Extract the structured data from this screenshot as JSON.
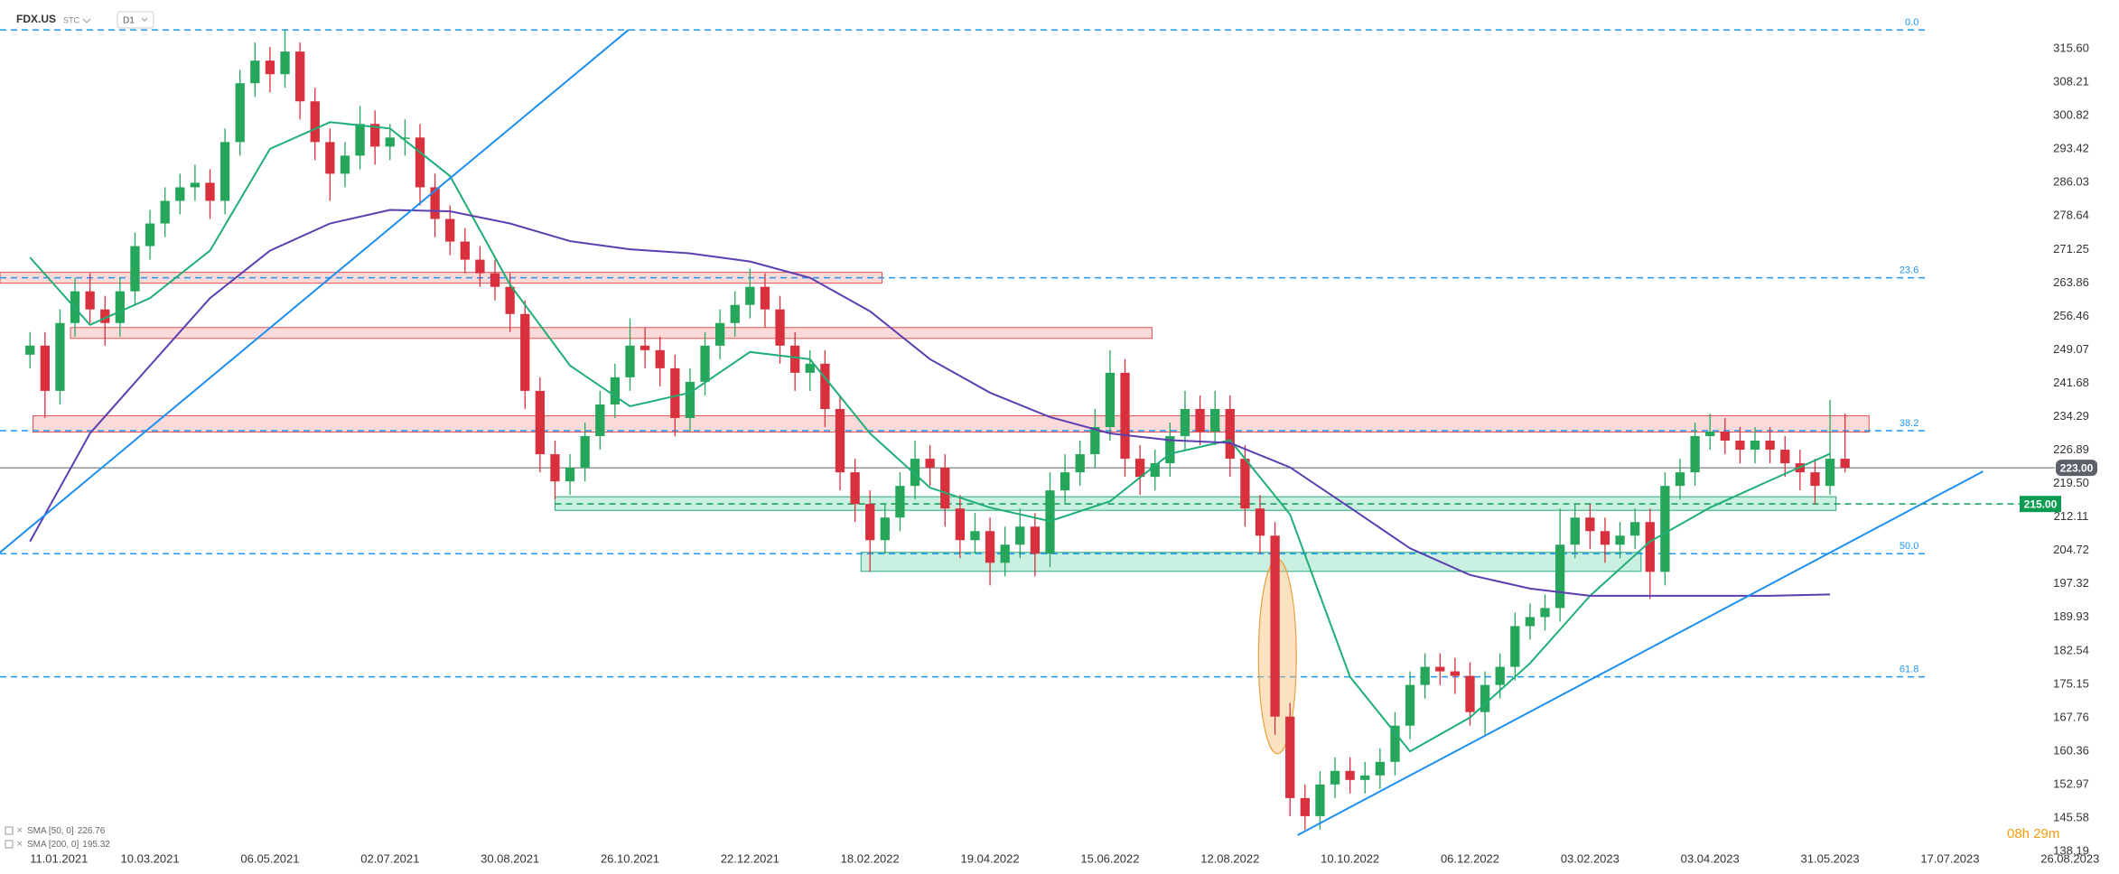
{
  "header": {
    "symbol": "FDX.US",
    "market": "STC",
    "interval": "D1"
  },
  "chart_data": {
    "type": "candlestick",
    "x": [
      0,
      5,
      10,
      15,
      20,
      25,
      30,
      35,
      40,
      45,
      50,
      55,
      60,
      65,
      70,
      75,
      80,
      85,
      90,
      95,
      100,
      105,
      110,
      115,
      120,
      125,
      130,
      135,
      140,
      145,
      150,
      155,
      160,
      165,
      170,
      175,
      180,
      185,
      190,
      195,
      200,
      205,
      210,
      215,
      220,
      225,
      230,
      235,
      240,
      245,
      250,
      255,
      260,
      265,
      270,
      275,
      280,
      285,
      290,
      295,
      300,
      305,
      310,
      315,
      320,
      325,
      330,
      335,
      340,
      345,
      350,
      355,
      360,
      365,
      370,
      375,
      380,
      385,
      390,
      395,
      400,
      405,
      410,
      415,
      420,
      425,
      430,
      435,
      440,
      445,
      450,
      455,
      460,
      465,
      470,
      475,
      480,
      485,
      490,
      495,
      500,
      505,
      510,
      515,
      520,
      525,
      530,
      535,
      540,
      545,
      550,
      555,
      560,
      565,
      570,
      575,
      580,
      585,
      590,
      595,
      600,
      605
    ],
    "open": [
      248,
      250,
      240,
      255,
      262,
      258,
      255,
      262,
      272,
      277,
      282,
      285,
      286,
      282,
      295,
      308,
      313,
      310,
      315,
      304,
      295,
      288,
      292,
      299,
      294,
      296,
      296,
      285,
      278,
      273,
      269,
      266,
      263,
      257,
      240,
      226,
      220,
      223,
      230,
      237,
      243,
      250,
      249,
      245,
      234,
      242,
      250,
      255,
      259,
      263,
      258,
      250,
      244,
      246,
      236,
      222,
      215,
      207,
      212,
      219,
      225,
      223,
      214,
      207,
      209,
      202,
      206,
      210,
      204,
      218,
      222,
      226,
      232,
      244,
      225,
      221,
      224,
      230,
      236,
      231,
      236,
      225,
      214,
      208,
      168,
      150,
      146,
      153,
      156,
      154,
      155,
      158,
      166,
      175,
      179,
      178,
      177,
      169,
      175,
      179,
      188,
      190,
      192,
      206,
      212,
      209,
      206,
      208,
      211,
      200,
      219,
      222,
      230,
      231,
      229,
      227,
      229,
      227,
      224,
      222,
      219,
      225
    ],
    "high": [
      253,
      253,
      258,
      265,
      266,
      261,
      265,
      275,
      280,
      285,
      288,
      290,
      289,
      298,
      311,
      317,
      316,
      320,
      317,
      307,
      298,
      295,
      303,
      302,
      299,
      300,
      299,
      288,
      281,
      276,
      272,
      269,
      266,
      260,
      243,
      229,
      226,
      233,
      240,
      246,
      256,
      254,
      252,
      248,
      245,
      253,
      258,
      262,
      267,
      266,
      261,
      253,
      249,
      249,
      239,
      225,
      218,
      215,
      222,
      229,
      228,
      226,
      217,
      213,
      212,
      210,
      214,
      213,
      222,
      226,
      229,
      236,
      249,
      247,
      228,
      227,
      233,
      240,
      239,
      240,
      239,
      228,
      217,
      211,
      171,
      153,
      156,
      159,
      159,
      158,
      161,
      169,
      178,
      182,
      182,
      181,
      180,
      178,
      182,
      191,
      193,
      195,
      214,
      215,
      215,
      212,
      211,
      214,
      214,
      222,
      225,
      233,
      235,
      234,
      232,
      232,
      232,
      230,
      227,
      225,
      238,
      235
    ],
    "low": [
      245,
      234,
      237,
      252,
      255,
      250,
      252,
      259,
      269,
      274,
      279,
      282,
      278,
      279,
      292,
      305,
      306,
      307,
      300,
      291,
      282,
      285,
      289,
      290,
      291,
      292,
      281,
      274,
      270,
      266,
      263,
      260,
      253,
      236,
      222,
      216,
      217,
      220,
      227,
      234,
      240,
      245,
      241,
      230,
      231,
      239,
      247,
      252,
      256,
      254,
      246,
      240,
      240,
      232,
      218,
      211,
      200,
      204,
      209,
      216,
      219,
      210,
      203,
      204,
      197,
      199,
      203,
      199,
      201,
      215,
      219,
      223,
      229,
      221,
      217,
      218,
      221,
      227,
      228,
      228,
      221,
      210,
      204,
      164,
      146,
      143,
      143,
      150,
      151,
      151,
      152,
      155,
      163,
      172,
      175,
      173,
      166,
      164,
      172,
      176,
      185,
      187,
      189,
      203,
      205,
      202,
      203,
      205,
      194,
      197,
      216,
      219,
      227,
      226,
      224,
      224,
      224,
      221,
      218,
      215,
      217,
      222
    ],
    "close": [
      250,
      240,
      255,
      262,
      258,
      255,
      262,
      272,
      277,
      282,
      285,
      286,
      282,
      295,
      308,
      313,
      310,
      315,
      304,
      295,
      288,
      292,
      299,
      294,
      296,
      296,
      285,
      278,
      273,
      269,
      266,
      263,
      257,
      240,
      226,
      220,
      223,
      230,
      237,
      243,
      250,
      249,
      245,
      234,
      242,
      250,
      255,
      259,
      263,
      258,
      250,
      244,
      246,
      236,
      222,
      215,
      207,
      212,
      219,
      225,
      223,
      214,
      207,
      209,
      202,
      206,
      210,
      204,
      218,
      222,
      226,
      232,
      244,
      225,
      221,
      224,
      230,
      236,
      231,
      236,
      225,
      214,
      208,
      168,
      150,
      146,
      153,
      156,
      154,
      155,
      158,
      166,
      175,
      179,
      178,
      177,
      169,
      175,
      179,
      188,
      190,
      192,
      206,
      212,
      209,
      206,
      208,
      211,
      200,
      219,
      222,
      230,
      231,
      229,
      227,
      229,
      227,
      224,
      222,
      219,
      225,
      223
    ],
    "colors": {
      "up": "#26a65b",
      "down": "#d9303e"
    },
    "grid": false,
    "xlim": [
      -10,
      690
    ],
    "xticks": [
      {
        "value": 0,
        "label": "11.01.2021"
      },
      {
        "value": 40,
        "label": "10.03.2021"
      },
      {
        "value": 80,
        "label": "06.05.2021"
      },
      {
        "value": 120,
        "label": "02.07.2021"
      },
      {
        "value": 160,
        "label": "30.08.2021"
      },
      {
        "value": 200,
        "label": "26.10.2021"
      },
      {
        "value": 240,
        "label": "22.12.2021"
      },
      {
        "value": 280,
        "label": "18.02.2022"
      },
      {
        "value": 320,
        "label": "19.04.2022"
      },
      {
        "value": 360,
        "label": "15.06.2022"
      },
      {
        "value": 400,
        "label": "12.08.2022"
      },
      {
        "value": 440,
        "label": "10.10.2022"
      },
      {
        "value": 480,
        "label": "06.12.2022"
      },
      {
        "value": 520,
        "label": "03.02.2023"
      },
      {
        "value": 560,
        "label": "03.04.2023"
      },
      {
        "value": 600,
        "label": "31.05.2023"
      },
      {
        "value": 640,
        "label": "17.07.2023"
      },
      {
        "value": 680,
        "label": "26.08.2023"
      }
    ],
    "ylim": [
      137.8,
      326.4
    ],
    "yticks": [
      {
        "value": 315.6,
        "label": "315.60"
      },
      308.21,
      300.82,
      293.42,
      286.03,
      278.64,
      271.25,
      263.86,
      256.46,
      249.07,
      241.68,
      234.29,
      226.89,
      {
        "value": 219.5,
        "label": "219.50"
      },
      212.11,
      204.72,
      197.32,
      189.93,
      182.54,
      175.15,
      167.76,
      160.36,
      152.97,
      145.58,
      138.19
    ],
    "indicators": [
      {
        "name": "SMA [50, 0]",
        "last": 226.76,
        "color": "#1fae75",
        "x": [
          0,
          20,
          40,
          60,
          80,
          100,
          120,
          140,
          160,
          180,
          200,
          220,
          240,
          260,
          280,
          300,
          320,
          340,
          360,
          380,
          400,
          420,
          440,
          460,
          480,
          500,
          520,
          540,
          560,
          580,
          600
        ],
        "values": [
          269.5,
          254.6,
          260.5,
          271,
          293.5,
          299.4,
          298,
          287.5,
          263.5,
          245.6,
          236.6,
          239.6,
          248.6,
          247,
          230.6,
          218.6,
          214.2,
          211.2,
          215.6,
          226.1,
          229.1,
          212.7,
          176.8,
          160.3,
          167.8,
          179.8,
          194.7,
          206.7,
          214.2,
          220.2,
          226.1
        ]
      },
      {
        "name": "SMA [200, 0]",
        "last": 195.32,
        "color": "#5b3fb0",
        "x": [
          0,
          20,
          40,
          60,
          80,
          100,
          120,
          140,
          160,
          180,
          200,
          220,
          240,
          260,
          280,
          300,
          320,
          340,
          360,
          380,
          400,
          420,
          440,
          460,
          480,
          500,
          520,
          540,
          560,
          580,
          600
        ],
        "values": [
          206.7,
          230.6,
          245.6,
          260.5,
          271,
          277,
          280,
          279.7,
          277,
          273.1,
          271.3,
          270.4,
          268.6,
          265,
          257.6,
          247,
          239.6,
          234.2,
          230.6,
          229.1,
          228.5,
          223.1,
          214.2,
          205.2,
          199.3,
          196.3,
          194.7,
          194.7,
          194.7,
          194.7,
          195
        ]
      }
    ],
    "fibonacci": [
      {
        "label": "0.0",
        "value": 319.8
      },
      {
        "label": "23.6",
        "value": 265
      },
      {
        "label": "38.2",
        "value": 231.2
      },
      {
        "label": "50.0",
        "value": 204
      },
      {
        "label": "61.8",
        "value": 176.8
      }
    ],
    "zones": [
      {
        "x": [
          -10,
          284
        ],
        "y": [
          263.8,
          266.2
        ],
        "color": "red"
      },
      {
        "x": [
          13.5,
          374
        ],
        "y": [
          251.6,
          254
        ],
        "color": "red"
      },
      {
        "x": [
          1,
          613
        ],
        "y": [
          230.9,
          234.5
        ],
        "color": "red"
      },
      {
        "x": [
          175,
          602
        ],
        "y": [
          213.6,
          216.6
        ],
        "color": "green"
      },
      {
        "x": [
          277,
          537
        ],
        "y": [
          200.1,
          204.3
        ],
        "color": "green"
      }
    ],
    "trendlines": [
      {
        "x": [
          -10,
          199.5
        ],
        "y": [
          204.3,
          319.8
        ]
      },
      {
        "x": [
          422.5,
          651
        ],
        "y": [
          141.8,
          222.2
        ]
      }
    ],
    "ellipse": {
      "x": 415.8,
      "y": 181.3,
      "rx": 6.3,
      "ry": 21.5
    },
    "price_lines": [
      {
        "value": 223,
        "label": "223.00",
        "color": "#5b6069",
        "dashed": false,
        "from": -10
      },
      {
        "value": 215,
        "label": "215.00",
        "color": "#0b9c52",
        "dashed": true,
        "from": 175
      }
    ],
    "countdown": "08h 29m"
  }
}
